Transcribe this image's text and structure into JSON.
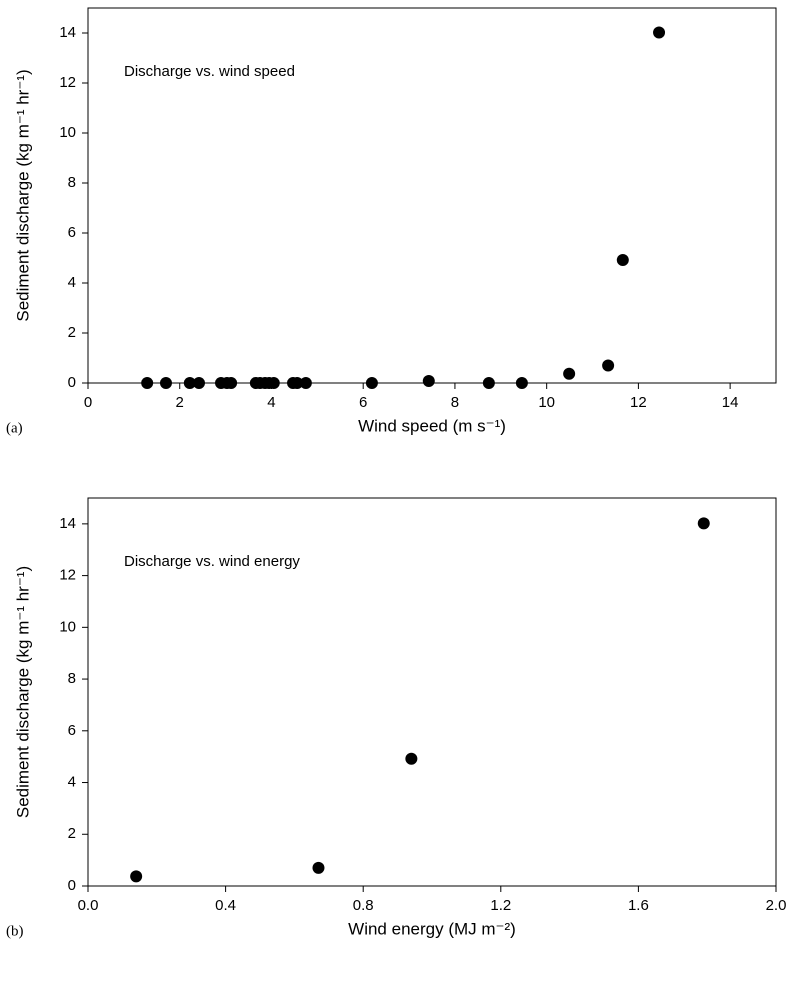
{
  "chart_data": [
    {
      "type": "scatter",
      "panel_label": "(a)",
      "annotation": "Discharge vs. wind speed",
      "xlabel": "Wind speed (m s⁻¹)",
      "ylabel": "Sediment discharge (kg m⁻¹ hr⁻¹)",
      "color": "#000000",
      "x": [
        1.29,
        1.7,
        2.22,
        2.42,
        2.9,
        3.03,
        3.12,
        3.66,
        3.75,
        3.86,
        3.95,
        4.05,
        4.47,
        4.56,
        4.75,
        6.19,
        7.43,
        8.74,
        9.46,
        10.49,
        11.34,
        11.66,
        12.45
      ],
      "y": [
        0,
        0,
        0,
        0,
        0,
        0,
        0,
        0,
        0,
        0,
        0,
        0,
        0,
        0,
        0,
        0,
        0.08,
        0,
        0,
        0.37,
        0.7,
        4.92,
        14.02
      ],
      "xlim": [
        0,
        15
      ],
      "ylim": [
        0,
        15
      ],
      "xticks": [
        0,
        2,
        4,
        6,
        8,
        10,
        12,
        14
      ],
      "yticks": [
        0,
        2,
        4,
        6,
        8,
        10,
        12,
        14
      ]
    },
    {
      "type": "scatter",
      "panel_label": "(b)",
      "annotation": "Discharge vs. wind energy",
      "xlabel": "Wind energy (MJ m⁻²)",
      "ylabel": "Sediment discharge (kg m⁻¹ hr⁻¹)",
      "color": "#000000",
      "x": [
        0.14,
        0.67,
        0.94,
        1.79
      ],
      "y": [
        0.37,
        0.7,
        4.92,
        14.02
      ],
      "xlim": [
        0,
        2
      ],
      "ylim": [
        0,
        15
      ],
      "xticks": [
        {
          "value": 0,
          "label": "0.0"
        },
        0.4,
        0.8,
        1.2,
        1.6,
        {
          "value": 2,
          "label": "2.0"
        }
      ],
      "yticks": [
        0,
        2,
        4,
        6,
        8,
        10,
        12,
        14
      ]
    }
  ]
}
